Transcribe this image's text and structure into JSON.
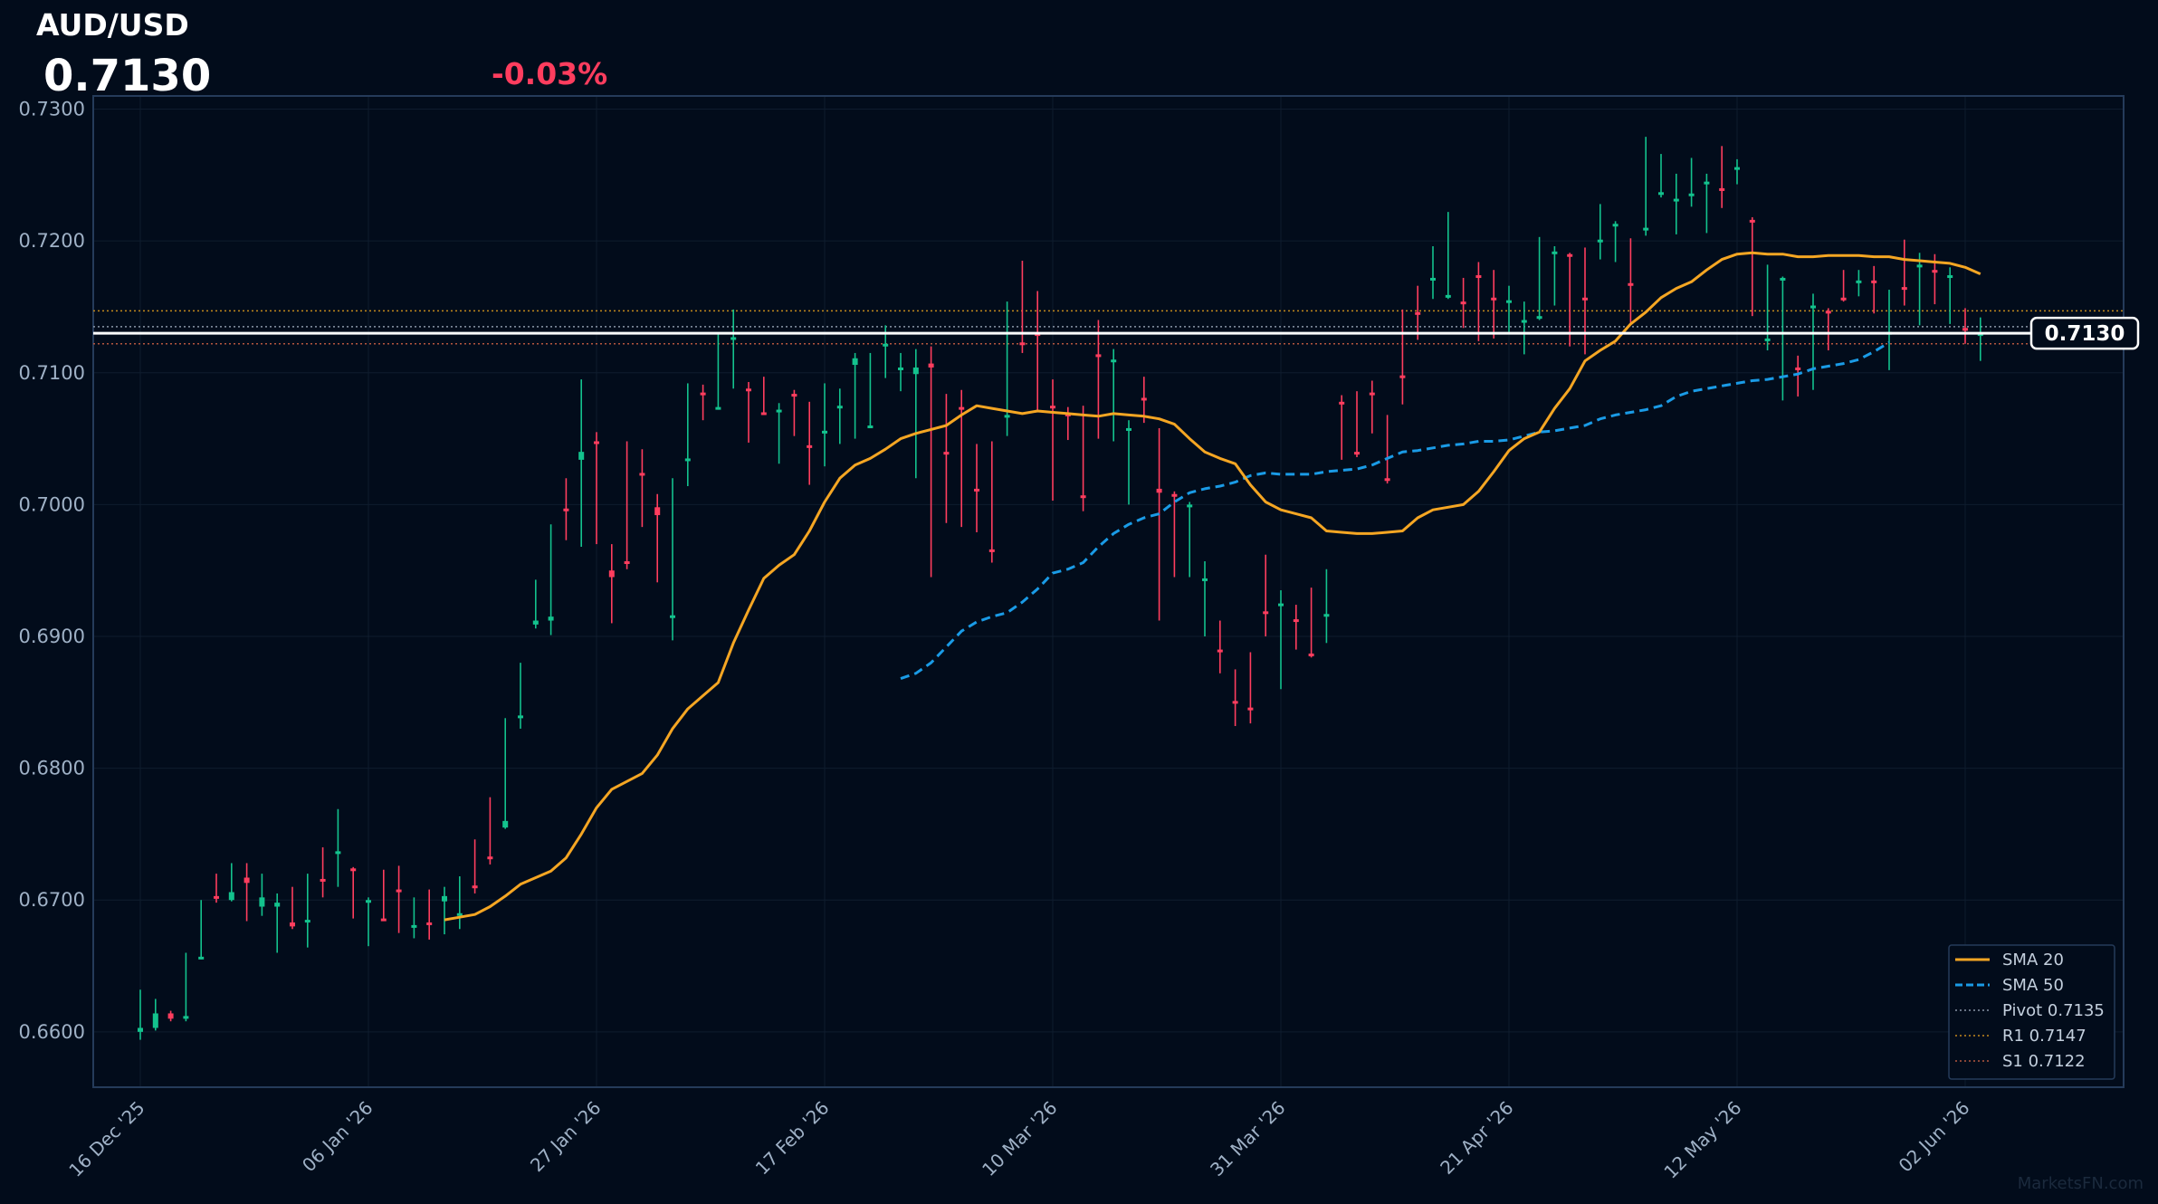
{
  "header": {
    "symbol": "AUD/USD",
    "price": "0.7130",
    "change": "-0.03%"
  },
  "watermark": "MarketsFN.com",
  "colors": {
    "bg": "#020c1b",
    "up": "#13c28d",
    "down": "#ff3d5e",
    "sma20": "#f5a623",
    "sma50": "#1a9be6",
    "price_line": "#ffffff",
    "frame": "#253b5a",
    "tick_text": "#9fb1c6"
  },
  "chart_data": {
    "type": "candlestick",
    "ylim": [
      0.6558,
      0.731
    ],
    "yticks": [
      "0.6600",
      "0.6700",
      "0.6800",
      "0.6900",
      "0.7000",
      "0.7100",
      "0.7200",
      "0.7300"
    ],
    "xticks": [
      {
        "i": 0,
        "label": "16 Dec '25"
      },
      {
        "i": 15,
        "label": "06 Jan '26"
      },
      {
        "i": 30,
        "label": "27 Jan '26"
      },
      {
        "i": 45,
        "label": "17 Feb '26"
      },
      {
        "i": 60,
        "label": "10 Mar '26"
      },
      {
        "i": 75,
        "label": "31 Mar '26"
      },
      {
        "i": 90,
        "label": "21 Apr '26"
      },
      {
        "i": 105,
        "label": "12 May '26"
      },
      {
        "i": 120,
        "label": "02 Jun '26"
      }
    ],
    "candles": [
      [
        0.66,
        0.6632,
        0.6594,
        0.6603
      ],
      [
        0.6603,
        0.6625,
        0.6601,
        0.6614
      ],
      [
        0.6614,
        0.6616,
        0.6608,
        0.661
      ],
      [
        0.661,
        0.666,
        0.6608,
        0.6612
      ],
      [
        0.6656,
        0.67,
        0.6655,
        0.6657
      ],
      [
        0.6703,
        0.672,
        0.6698,
        0.6701
      ],
      [
        0.67,
        0.6728,
        0.6699,
        0.6706
      ],
      [
        0.6717,
        0.6728,
        0.6684,
        0.6713
      ],
      [
        0.6695,
        0.672,
        0.6688,
        0.6702
      ],
      [
        0.6695,
        0.6705,
        0.666,
        0.6698
      ],
      [
        0.6683,
        0.671,
        0.6678,
        0.668
      ],
      [
        0.6685,
        0.672,
        0.6664,
        0.6685
      ],
      [
        0.6716,
        0.674,
        0.6702,
        0.6714
      ],
      [
        0.6735,
        0.6769,
        0.671,
        0.6737
      ],
      [
        0.6724,
        0.6725,
        0.6686,
        0.6722
      ],
      [
        0.6698,
        0.6702,
        0.6665,
        0.67
      ],
      [
        0.6686,
        0.6723,
        0.6684,
        0.6685
      ],
      [
        0.6708,
        0.6726,
        0.6675,
        0.6707
      ],
      [
        0.668,
        0.6702,
        0.6671,
        0.6681
      ],
      [
        0.6683,
        0.6708,
        0.667,
        0.6682
      ],
      [
        0.6699,
        0.671,
        0.6674,
        0.6703
      ],
      [
        0.669,
        0.6718,
        0.6678,
        0.669
      ],
      [
        0.6711,
        0.6746,
        0.6705,
        0.6709
      ],
      [
        0.6733,
        0.6778,
        0.6727,
        0.6731
      ],
      [
        0.6755,
        0.6838,
        0.6754,
        0.676
      ],
      [
        0.6838,
        0.688,
        0.683,
        0.684
      ],
      [
        0.6909,
        0.6943,
        0.6906,
        0.6912
      ],
      [
        0.6912,
        0.6985,
        0.6901,
        0.6915
      ],
      [
        0.6997,
        0.702,
        0.6973,
        0.6995
      ],
      [
        0.7034,
        0.7095,
        0.6968,
        0.704
      ],
      [
        0.7048,
        0.7055,
        0.697,
        0.7047
      ],
      [
        0.695,
        0.697,
        0.691,
        0.6945
      ],
      [
        0.6957,
        0.7048,
        0.6951,
        0.6955
      ],
      [
        0.7024,
        0.7042,
        0.6983,
        0.7022
      ],
      [
        0.6998,
        0.7008,
        0.6941,
        0.6992
      ],
      [
        0.6914,
        0.702,
        0.6897,
        0.6916
      ],
      [
        0.7035,
        0.7092,
        0.7014,
        0.7035
      ],
      [
        0.7085,
        0.7091,
        0.7064,
        0.7083
      ],
      [
        0.7073,
        0.713,
        0.7072,
        0.7074
      ],
      [
        0.7125,
        0.7148,
        0.7088,
        0.7127
      ],
      [
        0.7088,
        0.7093,
        0.7047,
        0.7086
      ],
      [
        0.707,
        0.7097,
        0.7068,
        0.7069
      ],
      [
        0.7072,
        0.7077,
        0.7031,
        0.7072
      ],
      [
        0.7084,
        0.7087,
        0.7052,
        0.7083
      ],
      [
        0.7045,
        0.7078,
        0.7015,
        0.7043
      ],
      [
        0.7055,
        0.7092,
        0.7029,
        0.7056
      ],
      [
        0.7074,
        0.7088,
        0.7046,
        0.7075
      ],
      [
        0.7106,
        0.7115,
        0.705,
        0.7111
      ],
      [
        0.706,
        0.7115,
        0.7059,
        0.706
      ],
      [
        0.7122,
        0.7136,
        0.7096,
        0.7122
      ],
      [
        0.7102,
        0.7115,
        0.7086,
        0.7104
      ],
      [
        0.7099,
        0.7118,
        0.702,
        0.7104
      ],
      [
        0.7107,
        0.712,
        0.6945,
        0.7104
      ],
      [
        0.704,
        0.7084,
        0.6986,
        0.7039
      ],
      [
        0.7074,
        0.7087,
        0.6983,
        0.7073
      ],
      [
        0.7012,
        0.7046,
        0.6979,
        0.701
      ],
      [
        0.6966,
        0.7048,
        0.6956,
        0.6965
      ],
      [
        0.7066,
        0.7154,
        0.7052,
        0.7068
      ],
      [
        0.7123,
        0.7185,
        0.7115,
        0.7121
      ],
      [
        0.713,
        0.7162,
        0.707,
        0.7129
      ],
      [
        0.7075,
        0.7095,
        0.7003,
        0.7074
      ],
      [
        0.7069,
        0.7074,
        0.7049,
        0.7068
      ],
      [
        0.7007,
        0.7075,
        0.6995,
        0.7005
      ],
      [
        0.7114,
        0.714,
        0.705,
        0.7112
      ],
      [
        0.7109,
        0.7118,
        0.7048,
        0.711
      ],
      [
        0.7056,
        0.7064,
        0.7,
        0.7058
      ],
      [
        0.7081,
        0.7097,
        0.7062,
        0.708
      ],
      [
        0.7012,
        0.7058,
        0.6912,
        0.7009
      ],
      [
        0.7008,
        0.701,
        0.6945,
        0.7006
      ],
      [
        0.6998,
        0.7002,
        0.6945,
        0.7
      ],
      [
        0.6944,
        0.6957,
        0.69,
        0.6944
      ],
      [
        0.689,
        0.6912,
        0.6872,
        0.6888
      ],
      [
        0.6851,
        0.6875,
        0.6832,
        0.685
      ],
      [
        0.6846,
        0.6888,
        0.6834,
        0.6845
      ],
      [
        0.6919,
        0.6962,
        0.69,
        0.6918
      ],
      [
        0.6924,
        0.6935,
        0.686,
        0.6925
      ],
      [
        0.6913,
        0.6924,
        0.689,
        0.6912
      ],
      [
        0.6887,
        0.6937,
        0.6884,
        0.6886
      ],
      [
        0.6916,
        0.6951,
        0.6895,
        0.6917
      ],
      [
        0.7078,
        0.7083,
        0.7034,
        0.7076
      ],
      [
        0.704,
        0.7086,
        0.7036,
        0.7039
      ],
      [
        0.7085,
        0.7094,
        0.7054,
        0.7083
      ],
      [
        0.702,
        0.7068,
        0.7016,
        0.7019
      ],
      [
        0.7098,
        0.7148,
        0.7076,
        0.7096
      ],
      [
        0.7146,
        0.7166,
        0.7125,
        0.7145
      ],
      [
        0.7172,
        0.7196,
        0.7156,
        0.7172
      ],
      [
        0.7157,
        0.7222,
        0.7156,
        0.7159
      ],
      [
        0.7154,
        0.7172,
        0.7134,
        0.7152
      ],
      [
        0.7174,
        0.7184,
        0.7124,
        0.7173
      ],
      [
        0.7157,
        0.7178,
        0.7126,
        0.7156
      ],
      [
        0.7154,
        0.7166,
        0.7131,
        0.7155
      ],
      [
        0.714,
        0.7154,
        0.7114,
        0.714
      ],
      [
        0.7142,
        0.7203,
        0.714,
        0.7143
      ],
      [
        0.7191,
        0.7196,
        0.7151,
        0.7192
      ],
      [
        0.719,
        0.7191,
        0.712,
        0.7188
      ],
      [
        0.7157,
        0.7195,
        0.7114,
        0.7156
      ],
      [
        0.72,
        0.7228,
        0.7186,
        0.7201
      ],
      [
        0.7212,
        0.7215,
        0.7184,
        0.7213
      ],
      [
        0.7168,
        0.7202,
        0.7138,
        0.7167
      ],
      [
        0.7209,
        0.7279,
        0.7204,
        0.721
      ],
      [
        0.7236,
        0.7266,
        0.7233,
        0.7237
      ],
      [
        0.7232,
        0.7251,
        0.7205,
        0.7232
      ],
      [
        0.7234,
        0.7263,
        0.7226,
        0.7236
      ],
      [
        0.7243,
        0.7251,
        0.7206,
        0.7245
      ],
      [
        0.724,
        0.7272,
        0.7225,
        0.7238
      ],
      [
        0.7255,
        0.7262,
        0.7243,
        0.7256
      ],
      [
        0.7216,
        0.7218,
        0.7143,
        0.7214
      ],
      [
        0.7125,
        0.7182,
        0.7117,
        0.7126
      ],
      [
        0.7171,
        0.7173,
        0.7079,
        0.7172
      ],
      [
        0.7104,
        0.7113,
        0.7082,
        0.7103
      ],
      [
        0.715,
        0.716,
        0.7087,
        0.7151
      ],
      [
        0.7147,
        0.7149,
        0.7117,
        0.7146
      ],
      [
        0.7157,
        0.7178,
        0.7154,
        0.7156
      ],
      [
        0.717,
        0.7178,
        0.7158,
        0.717
      ],
      [
        0.717,
        0.7181,
        0.7145,
        0.7169
      ],
      [
        0.713,
        0.7163,
        0.7102,
        0.7131
      ],
      [
        0.7165,
        0.7201,
        0.7151,
        0.7164
      ],
      [
        0.7181,
        0.7191,
        0.7136,
        0.7182
      ],
      [
        0.7178,
        0.719,
        0.7152,
        0.7176
      ],
      [
        0.7173,
        0.718,
        0.7137,
        0.7174
      ],
      [
        0.7134,
        0.7149,
        0.7122,
        0.7133
      ],
      [
        0.713,
        0.7142,
        0.7109,
        0.713
      ]
    ],
    "sma20": {
      "start": 20,
      "values": [
        0.6685,
        0.6687,
        0.6689,
        0.6695,
        0.6703,
        0.6712,
        0.6717,
        0.6722,
        0.6732,
        0.675,
        0.677,
        0.6784,
        0.679,
        0.6796,
        0.681,
        0.683,
        0.6845,
        0.6855,
        0.6865,
        0.6895,
        0.692,
        0.6944,
        0.6954,
        0.6962,
        0.698,
        0.7002,
        0.702,
        0.703,
        0.7035,
        0.7042,
        0.705,
        0.7054,
        0.7057,
        0.706,
        0.7068,
        0.7075,
        0.7073,
        0.7071,
        0.7069,
        0.7071,
        0.707,
        0.7069,
        0.7068,
        0.7067,
        0.7069,
        0.7068,
        0.7067,
        0.7065,
        0.7061,
        0.705,
        0.704,
        0.7035,
        0.7031,
        0.7015,
        0.7002,
        0.6996,
        0.6993,
        0.699,
        0.698,
        0.6979,
        0.6978,
        0.6978,
        0.6979,
        0.698,
        0.699,
        0.6996,
        0.6998,
        0.7,
        0.701,
        0.7025,
        0.7041,
        0.705,
        0.7055,
        0.7073,
        0.7088,
        0.7109,
        0.7117,
        0.7124,
        0.7137,
        0.7146,
        0.7157,
        0.7164,
        0.7169,
        0.7178,
        0.7186,
        0.719,
        0.7191,
        0.719,
        0.719,
        0.7188,
        0.7188,
        0.7189,
        0.7189,
        0.7189,
        0.7188,
        0.7188,
        0.7186,
        0.7185,
        0.7184,
        0.7183,
        0.718,
        0.7175
      ]
    },
    "sma50": {
      "start": 50,
      "values": [
        0.6868,
        0.6872,
        0.688,
        0.6892,
        0.6904,
        0.6911,
        0.6915,
        0.6918,
        0.6926,
        0.6936,
        0.6948,
        0.6951,
        0.6956,
        0.6968,
        0.6978,
        0.6985,
        0.699,
        0.6993,
        0.7002,
        0.7009,
        0.7012,
        0.7014,
        0.7017,
        0.7022,
        0.7024,
        0.7023,
        0.7023,
        0.7023,
        0.7025,
        0.7026,
        0.7027,
        0.703,
        0.7035,
        0.704,
        0.7041,
        0.7043,
        0.7045,
        0.7046,
        0.7048,
        0.7048,
        0.7049,
        0.7052,
        0.7055,
        0.7056,
        0.7058,
        0.706,
        0.7065,
        0.7068,
        0.707,
        0.7072,
        0.7075,
        0.7082,
        0.7086,
        0.7088,
        0.709,
        0.7092,
        0.7094,
        0.7095,
        0.7097,
        0.7099,
        0.7103,
        0.7105,
        0.7107,
        0.711,
        0.7116,
        0.7123
      ]
    },
    "levels": {
      "pivot": 0.7135,
      "r1": 0.7147,
      "s1": 0.7122,
      "last": 0.713
    },
    "last_label": "0.7130",
    "legend": [
      "SMA 20",
      "SMA 50",
      "Pivot 0.7135",
      "R1 0.7147",
      "S1 0.7122"
    ],
    "legend_position": "bottom-right",
    "grid": true
  }
}
